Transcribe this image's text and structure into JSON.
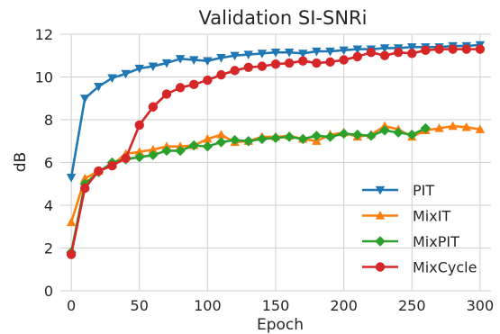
{
  "chart_data": {
    "type": "line",
    "title": "Validation SI-SNRi",
    "xlabel": "Epoch",
    "ylabel": "dB",
    "xlim": [
      -8,
      308
    ],
    "ylim": [
      0,
      12
    ],
    "xticks": [
      0,
      50,
      100,
      150,
      200,
      250,
      300
    ],
    "yticks": [
      0,
      2,
      4,
      6,
      8,
      10,
      12
    ],
    "grid": true,
    "legend_position": "lower-right",
    "x": [
      0,
      10,
      20,
      30,
      40,
      50,
      60,
      70,
      80,
      90,
      100,
      110,
      120,
      130,
      140,
      150,
      160,
      170,
      180,
      190,
      200,
      210,
      220,
      230,
      240,
      250,
      260,
      270,
      280,
      290,
      300
    ],
    "series": [
      {
        "name": "PIT",
        "color": "#1f77b4",
        "marker": "triangle-down",
        "values": [
          5.3,
          9.0,
          9.55,
          9.95,
          10.15,
          10.4,
          10.5,
          10.65,
          10.85,
          10.8,
          10.75,
          10.9,
          11.0,
          11.05,
          11.1,
          11.15,
          11.15,
          11.1,
          11.2,
          11.2,
          11.25,
          11.3,
          11.3,
          11.35,
          11.35,
          11.4,
          11.4,
          11.4,
          11.45,
          11.45,
          11.5
        ]
      },
      {
        "name": "MixIT",
        "color": "#ff7f0e",
        "marker": "triangle-up",
        "values": [
          3.2,
          5.25,
          5.6,
          5.9,
          6.4,
          6.5,
          6.6,
          6.75,
          6.75,
          6.8,
          7.1,
          7.3,
          6.95,
          7.0,
          7.2,
          7.2,
          7.25,
          7.1,
          7.0,
          7.3,
          7.4,
          7.2,
          7.3,
          7.7,
          7.55,
          7.2,
          7.5,
          7.6,
          7.7,
          7.65,
          7.55
        ]
      },
      {
        "name": "MixPIT",
        "color": "#2ca02c",
        "marker": "diamond",
        "values": [
          1.8,
          5.0,
          5.55,
          6.0,
          6.15,
          6.25,
          6.35,
          6.55,
          6.55,
          6.8,
          6.75,
          6.95,
          7.05,
          7.0,
          7.1,
          7.15,
          7.2,
          7.1,
          7.25,
          7.2,
          7.35,
          7.3,
          7.25,
          7.5,
          7.4,
          7.3,
          7.6,
          null,
          null,
          null,
          null
        ]
      },
      {
        "name": "MixCycle",
        "color": "#d62728",
        "marker": "circle",
        "values": [
          1.7,
          4.8,
          5.6,
          5.85,
          6.2,
          7.75,
          8.6,
          9.2,
          9.5,
          9.65,
          9.85,
          10.1,
          10.3,
          10.45,
          10.5,
          10.6,
          10.65,
          10.75,
          10.65,
          10.7,
          10.8,
          10.95,
          11.15,
          11.0,
          11.15,
          11.1,
          11.25,
          11.3,
          11.3,
          11.3,
          11.3
        ]
      }
    ]
  }
}
